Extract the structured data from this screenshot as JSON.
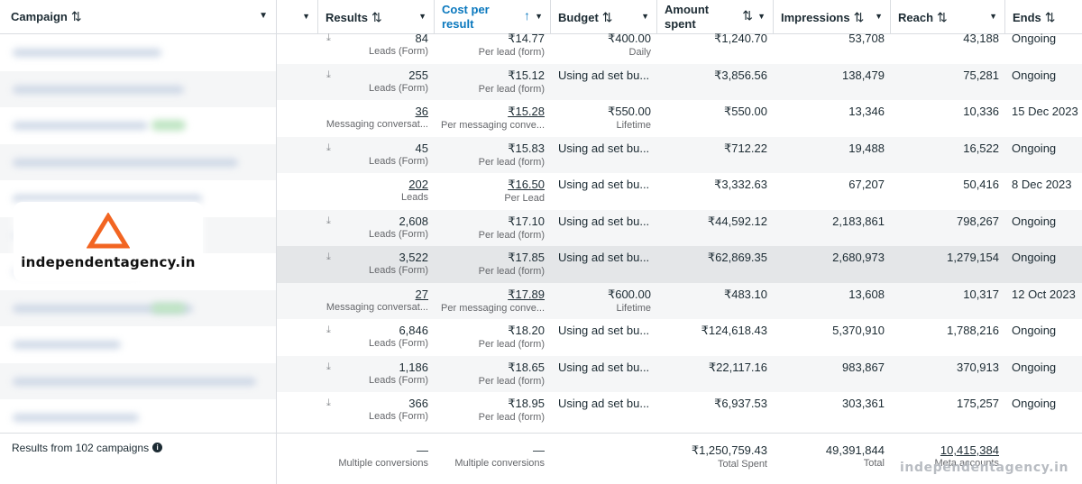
{
  "left": {
    "header_label": "Campaign",
    "sort_icon": "⇅",
    "footer_text": "Results from 102 campaigns",
    "logo_text": "independentagency.in"
  },
  "headers": {
    "results": "Results",
    "cost_line1": "Cost per",
    "cost_line2": "result",
    "budget": "Budget",
    "amount_line1": "Amount",
    "amount_line2": "spent",
    "impressions": "Impressions",
    "reach": "Reach",
    "ends": "Ends"
  },
  "rows": [
    {
      "results": "84",
      "results_sub": "Leads (Form)",
      "cost": "₹14.77",
      "cost_sub": "Per lead (form)",
      "budget": "₹400.00",
      "budget_sub": "Daily",
      "spent": "₹1,240.70",
      "impressions": "53,708",
      "reach": "43,188",
      "ends": "Ongoing",
      "download": true,
      "underline": false
    },
    {
      "results": "255",
      "results_sub": "Leads (Form)",
      "cost": "₹15.12",
      "cost_sub": "Per lead (form)",
      "budget": "Using ad set bu...",
      "budget_sub": "",
      "spent": "₹3,856.56",
      "impressions": "138,479",
      "reach": "75,281",
      "ends": "Ongoing",
      "download": true,
      "underline": false
    },
    {
      "results": "36",
      "results_sub": "Messaging conversat...",
      "cost": "₹15.28",
      "cost_sub": "Per messaging conve...",
      "budget": "₹550.00",
      "budget_sub": "Lifetime",
      "spent": "₹550.00",
      "impressions": "13,346",
      "reach": "10,336",
      "ends": "15 Dec 2023",
      "download": false,
      "underline": true
    },
    {
      "results": "45",
      "results_sub": "Leads (Form)",
      "cost": "₹15.83",
      "cost_sub": "Per lead (form)",
      "budget": "Using ad set bu...",
      "budget_sub": "",
      "spent": "₹712.22",
      "impressions": "19,488",
      "reach": "16,522",
      "ends": "Ongoing",
      "download": true,
      "underline": false
    },
    {
      "results": "202",
      "results_sub": "Leads",
      "cost": "₹16.50",
      "cost_sub": "Per Lead",
      "budget": "Using ad set bu...",
      "budget_sub": "",
      "spent": "₹3,332.63",
      "impressions": "67,207",
      "reach": "50,416",
      "ends": "8 Dec 2023",
      "download": false,
      "underline": true
    },
    {
      "results": "2,608",
      "results_sub": "Leads (Form)",
      "cost": "₹17.10",
      "cost_sub": "Per lead (form)",
      "budget": "Using ad set bu...",
      "budget_sub": "",
      "spent": "₹44,592.12",
      "impressions": "2,183,861",
      "reach": "798,267",
      "ends": "Ongoing",
      "download": true,
      "underline": false
    },
    {
      "results": "3,522",
      "results_sub": "Leads (Form)",
      "cost": "₹17.85",
      "cost_sub": "Per lead (form)",
      "budget": "Using ad set bu...",
      "budget_sub": "",
      "spent": "₹62,869.35",
      "impressions": "2,680,973",
      "reach": "1,279,154",
      "ends": "Ongoing",
      "download": true,
      "underline": false
    },
    {
      "results": "27",
      "results_sub": "Messaging conversat...",
      "cost": "₹17.89",
      "cost_sub": "Per messaging conve...",
      "budget": "₹600.00",
      "budget_sub": "Lifetime",
      "spent": "₹483.10",
      "impressions": "13,608",
      "reach": "10,317",
      "ends": "12 Oct 2023",
      "download": false,
      "underline": true
    },
    {
      "results": "6,846",
      "results_sub": "Leads (Form)",
      "cost": "₹18.20",
      "cost_sub": "Per lead (form)",
      "budget": "Using ad set bu...",
      "budget_sub": "",
      "spent": "₹124,618.43",
      "impressions": "5,370,910",
      "reach": "1,788,216",
      "ends": "Ongoing",
      "download": true,
      "underline": false
    },
    {
      "results": "1,186",
      "results_sub": "Leads (Form)",
      "cost": "₹18.65",
      "cost_sub": "Per lead (form)",
      "budget": "Using ad set bu...",
      "budget_sub": "",
      "spent": "₹22,117.16",
      "impressions": "983,867",
      "reach": "370,913",
      "ends": "Ongoing",
      "download": true,
      "underline": false
    },
    {
      "results": "366",
      "results_sub": "Leads (Form)",
      "cost": "₹18.95",
      "cost_sub": "Per lead (form)",
      "budget": "Using ad set bu...",
      "budget_sub": "",
      "spent": "₹6,937.53",
      "impressions": "303,361",
      "reach": "175,257",
      "ends": "Ongoing",
      "download": true,
      "underline": false
    }
  ],
  "footer": {
    "results": "—",
    "results_sub": "Multiple conversions",
    "cost": "—",
    "cost_sub": "Multiple conversions",
    "spent": "₹1,250,759.43",
    "spent_sub": "Total Spent",
    "impressions": "49,391,844",
    "impressions_sub": "Total",
    "reach": "10,415,384",
    "reach_sub": "Meta accounts"
  },
  "watermark": "independentagency.in"
}
